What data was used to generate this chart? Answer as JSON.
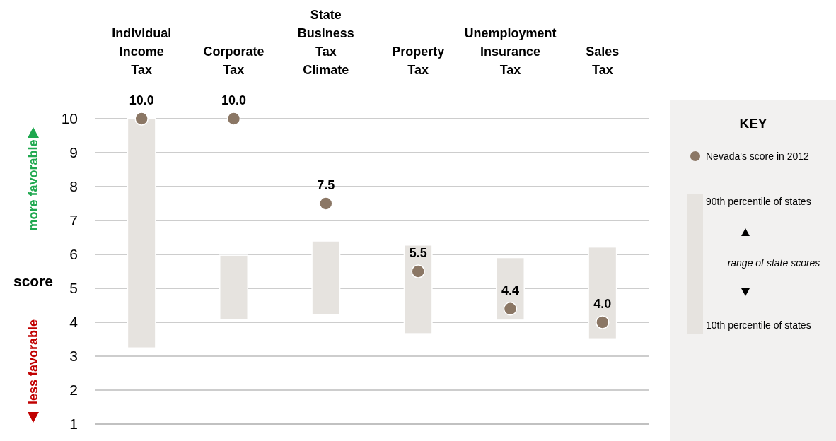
{
  "chart_data": {
    "type": "bar",
    "categories": [
      "Individual Income Tax",
      "Corporate Tax",
      "State Business Tax Climate",
      "Property Tax",
      "Unemployment Insurance Tax",
      "Sales Tax"
    ],
    "ylabel": "score",
    "ylim": [
      1,
      10
    ],
    "yticks": [
      1,
      2,
      3,
      4,
      5,
      6,
      7,
      8,
      9,
      10
    ],
    "grid": "y",
    "legend": "right",
    "legend_title": "KEY",
    "annotations": [
      "more favorable",
      "less favorable",
      "90th percentile of states",
      "10th percentile of states",
      "range of state scores"
    ],
    "series": [
      {
        "color": "#e6e3df",
        "base": [
          3.26,
          4.1,
          4.23,
          3.68,
          4.08,
          3.53
        ],
        "values": [
          6.74,
          1.86,
          2.15,
          2.58,
          1.81,
          2.67
        ]
      },
      {
        "name": "Nevada's score in 2012",
        "type": "scatter",
        "color": "#8b7765",
        "marker": "circle",
        "x": [
          "Individual Income Tax",
          "Corporate Tax",
          "State Business Tax Climate",
          "Property Tax",
          "Unemployment Insurance Tax",
          "Sales Tax"
        ],
        "values": [
          10,
          10,
          7.5,
          5.5,
          4.4,
          4.0
        ],
        "value_labels": [
          "10.0",
          "10.0",
          "7.5",
          "5.5",
          "4.4",
          "4.0"
        ]
      }
    ]
  }
}
